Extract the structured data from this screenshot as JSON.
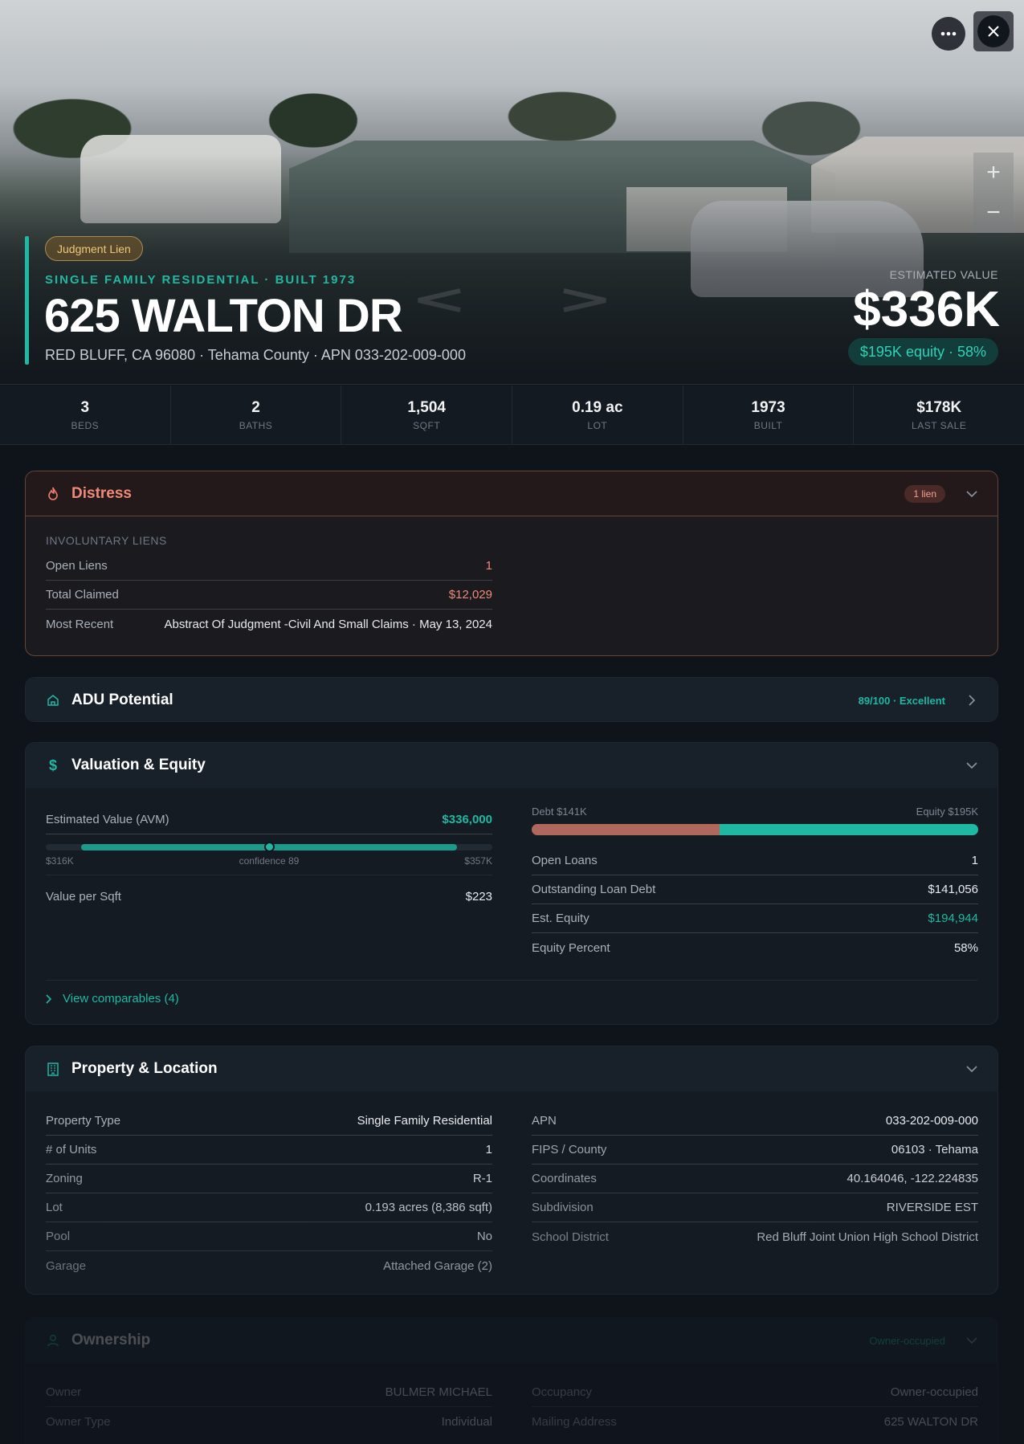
{
  "hero": {
    "badge": "Judgment Lien",
    "subtitle": "SINGLE FAMILY RESIDENTIAL · BUILT 1973",
    "title": "625 WALTON DR",
    "address": "RED BLUFF, CA 96080 · Tehama County · APN 033-202-009-000",
    "estimated_label": "ESTIMATED VALUE",
    "estimated_value": "$336K",
    "equity_pill": "$195K equity · 58%",
    "zoom_in": "+",
    "zoom_out": "−"
  },
  "stats": [
    {
      "value": "3",
      "label": "BEDS"
    },
    {
      "value": "2",
      "label": "BATHS"
    },
    {
      "value": "1,504",
      "label": "SQFT"
    },
    {
      "value": "0.19 ac",
      "label": "LOT"
    },
    {
      "value": "1973",
      "label": "BUILT"
    },
    {
      "value": "$178K",
      "label": "LAST SALE"
    }
  ],
  "distress": {
    "title": "Distress",
    "badge": "1 lien",
    "section": "INVOLUNTARY LIENS",
    "rows": [
      {
        "k": "Open Liens",
        "v": "1"
      },
      {
        "k": "Total Claimed",
        "v": "$12,029"
      },
      {
        "k": "Most Recent",
        "v": "Abstract Of Judgment -Civil And Small Claims · May 13, 2024"
      }
    ]
  },
  "adu": {
    "title": "ADU Potential",
    "score": "89/100 · Excellent"
  },
  "valuation": {
    "title": "Valuation & Equity",
    "avm_label": "Estimated Value (AVM)",
    "avm_value": "$336,000",
    "avm_low": "$316K",
    "avm_confidence": "confidence 89",
    "avm_high": "$357K",
    "avm_position": 0.5,
    "avm_range_start": 0.08,
    "avm_range_end": 0.92,
    "vps_label": "Value per Sqft",
    "vps_value": "$223",
    "debt_label": "Debt $141K",
    "equity_label": "Equity $195K",
    "debt_fraction": 0.42,
    "rows": [
      {
        "k": "Open Loans",
        "v": "1"
      },
      {
        "k": "Outstanding Loan Debt",
        "v": "$141,056"
      },
      {
        "k": "Est. Equity",
        "v": "$194,944"
      },
      {
        "k": "Equity Percent",
        "v": "58%"
      }
    ],
    "comparables": "View comparables (4)"
  },
  "property": {
    "title": "Property & Location",
    "left": [
      {
        "k": "Property Type",
        "v": "Single Family Residential"
      },
      {
        "k": "# of Units",
        "v": "1"
      },
      {
        "k": "Zoning",
        "v": "R-1"
      },
      {
        "k": "Lot",
        "v": "0.193 acres (8,386 sqft)"
      },
      {
        "k": "Pool",
        "v": "No"
      },
      {
        "k": "Garage",
        "v": "Attached Garage (2)"
      }
    ],
    "right": [
      {
        "k": "APN",
        "v": "033-202-009-000"
      },
      {
        "k": "FIPS / County",
        "v": "06103 · Tehama"
      },
      {
        "k": "Coordinates",
        "v": "40.164046, -122.224835"
      },
      {
        "k": "Subdivision",
        "v": "RIVERSIDE EST"
      },
      {
        "k": "School District",
        "v": "Red Bluff Joint Union High School District"
      }
    ]
  },
  "ownership": {
    "title": "Ownership",
    "status": "Owner-occupied",
    "left": [
      {
        "k": "Owner",
        "v": "BULMER MICHAEL"
      },
      {
        "k": "Owner Type",
        "v": "Individual"
      }
    ],
    "right": [
      {
        "k": "Occupancy",
        "v": "Owner-occupied"
      },
      {
        "k": "Mailing Address",
        "v": "625 WALTON DR"
      }
    ]
  },
  "colors": {
    "accent": "#1fb8a2",
    "distress": "#ef8a78",
    "debt": "#b0675c"
  }
}
